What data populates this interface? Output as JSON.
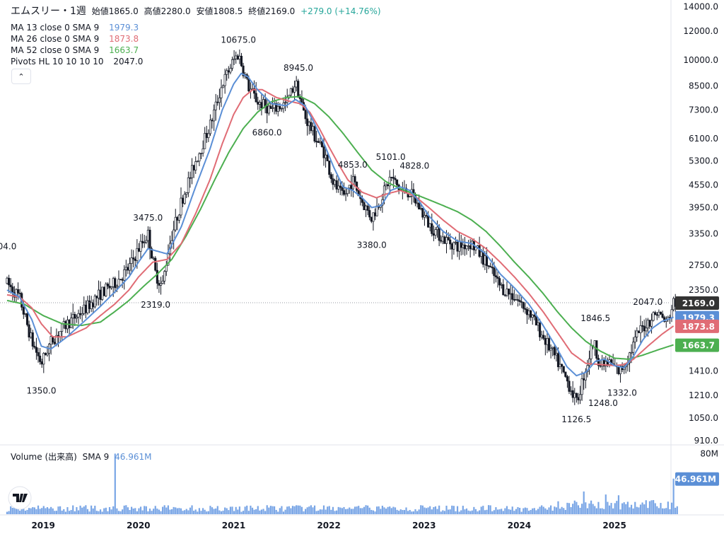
{
  "header": {
    "symbol": "エムスリー・1週",
    "open_label": "始値",
    "open_value": "1865.0",
    "high_label": "高値",
    "high_value": "2280.0",
    "low_label": "安値",
    "low_value": "1808.5",
    "close_label": "終値",
    "close_value": "2169.0",
    "change": "+279.0 (+14.76%)"
  },
  "indicators": [
    {
      "label": "MA 13 close 0 SMA 9",
      "value": "1979.3",
      "color": "#5b8fd6"
    },
    {
      "label": "MA 26 close 0 SMA 9",
      "value": "1873.8",
      "color": "#e06c75"
    },
    {
      "label": "MA 52 close 0 SMA 9",
      "value": "1663.7",
      "color": "#4caf50"
    },
    {
      "label": "Pivots HL 10 10 10 10",
      "value": "2047.0",
      "color": "#131722"
    }
  ],
  "volume_label": {
    "label": "Volume (出来高)",
    "sma": "SMA 9",
    "value": "46.961M",
    "color": "#5b8fd6"
  },
  "colors": {
    "candle": "#131722",
    "ma13": "#5b8fd6",
    "ma26": "#e06c75",
    "ma52": "#4caf50",
    "volume": "#7aa6e6",
    "axis_text": "#131722",
    "grid_border": "#e0e3eb",
    "last_price_bg": "#333333",
    "ma13_bg": "#5b8fd6",
    "ma26_bg": "#e06c75",
    "ma52_bg": "#4caf50",
    "volume_bg": "#5b8fd6"
  },
  "chart_data": {
    "type": "candlestick",
    "scale": "log",
    "y_ticks": [
      "14000.0",
      "12000.0",
      "10000.0",
      "8500.0",
      "7300.0",
      "6100.0",
      "5300.0",
      "4550.0",
      "3950.0",
      "3350.0",
      "2750.0",
      "2350.0",
      "1410.0",
      "1210.0",
      "1050.0",
      "910.0"
    ],
    "y_tick_values": [
      14000,
      12000,
      10000,
      8500,
      7300,
      6100,
      5300,
      4550,
      3950,
      3350,
      2750,
      2350,
      1410,
      1210,
      1050,
      910
    ],
    "ylim": [
      890,
      14600
    ],
    "x_ticks": [
      "2019",
      "2020",
      "2021",
      "2022",
      "2023",
      "2024",
      "2025"
    ],
    "x_tick_years": [
      2019,
      2020,
      2021,
      2022,
      2023,
      2024,
      2025
    ],
    "xlim": [
      2018.62,
      2025.66
    ],
    "price_path": [
      [
        2018.62,
        2450
      ],
      [
        2018.75,
        2250
      ],
      [
        2018.88,
        1700
      ],
      [
        2018.98,
        1480
      ],
      [
        2019.08,
        1700
      ],
      [
        2019.25,
        1900
      ],
      [
        2019.45,
        2100
      ],
      [
        2019.6,
        2300
      ],
      [
        2019.75,
        2450
      ],
      [
        2019.9,
        2700
      ],
      [
        2020.0,
        3050
      ],
      [
        2020.1,
        3350
      ],
      [
        2020.18,
        2600
      ],
      [
        2020.25,
        2400
      ],
      [
        2020.32,
        3100
      ],
      [
        2020.45,
        4100
      ],
      [
        2020.6,
        5300
      ],
      [
        2020.75,
        6600
      ],
      [
        2020.88,
        8600
      ],
      [
        2021.0,
        10000
      ],
      [
        2021.05,
        10400
      ],
      [
        2021.15,
        8500
      ],
      [
        2021.25,
        7700
      ],
      [
        2021.4,
        7300
      ],
      [
        2021.55,
        7600
      ],
      [
        2021.65,
        8700
      ],
      [
        2021.75,
        7000
      ],
      [
        2021.85,
        6200
      ],
      [
        2021.95,
        5600
      ],
      [
        2022.05,
        4600
      ],
      [
        2022.15,
        4200
      ],
      [
        2022.25,
        4700
      ],
      [
        2022.35,
        4100
      ],
      [
        2022.45,
        3700
      ],
      [
        2022.55,
        4200
      ],
      [
        2022.65,
        4800
      ],
      [
        2022.75,
        4400
      ],
      [
        2022.85,
        4350
      ],
      [
        2022.95,
        3950
      ],
      [
        2023.05,
        3550
      ],
      [
        2023.2,
        3250
      ],
      [
        2023.35,
        3100
      ],
      [
        2023.5,
        3150
      ],
      [
        2023.65,
        2800
      ],
      [
        2023.8,
        2400
      ],
      [
        2023.95,
        2250
      ],
      [
        2024.1,
        2050
      ],
      [
        2024.25,
        1750
      ],
      [
        2024.4,
        1500
      ],
      [
        2024.55,
        1250
      ],
      [
        2024.6,
        1150
      ],
      [
        2024.68,
        1380
      ],
      [
        2024.78,
        1700
      ],
      [
        2024.85,
        1460
      ],
      [
        2024.95,
        1480
      ],
      [
        2025.05,
        1400
      ],
      [
        2025.15,
        1550
      ],
      [
        2025.25,
        1800
      ],
      [
        2025.35,
        1920
      ],
      [
        2025.45,
        2050
      ],
      [
        2025.55,
        1900
      ],
      [
        2025.62,
        2169
      ]
    ],
    "ma13": [
      [
        2018.62,
        2350
      ],
      [
        2018.75,
        2250
      ],
      [
        2018.88,
        1950
      ],
      [
        2018.98,
        1650
      ],
      [
        2019.08,
        1620
      ],
      [
        2019.25,
        1750
      ],
      [
        2019.45,
        1950
      ],
      [
        2019.6,
        2120
      ],
      [
        2019.75,
        2320
      ],
      [
        2019.9,
        2550
      ],
      [
        2020.0,
        2800
      ],
      [
        2020.1,
        3050
      ],
      [
        2020.2,
        3000
      ],
      [
        2020.3,
        2950
      ],
      [
        2020.45,
        3500
      ],
      [
        2020.6,
        4500
      ],
      [
        2020.75,
        5700
      ],
      [
        2020.88,
        7300
      ],
      [
        2021.0,
        8600
      ],
      [
        2021.08,
        9200
      ],
      [
        2021.15,
        9000
      ],
      [
        2021.25,
        8300
      ],
      [
        2021.4,
        7600
      ],
      [
        2021.55,
        7500
      ],
      [
        2021.65,
        7800
      ],
      [
        2021.75,
        7500
      ],
      [
        2021.85,
        6700
      ],
      [
        2021.95,
        5900
      ],
      [
        2022.05,
        5100
      ],
      [
        2022.15,
        4500
      ],
      [
        2022.25,
        4400
      ],
      [
        2022.35,
        4200
      ],
      [
        2022.45,
        3950
      ],
      [
        2022.55,
        4000
      ],
      [
        2022.65,
        4400
      ],
      [
        2022.75,
        4500
      ],
      [
        2022.85,
        4400
      ],
      [
        2022.95,
        4100
      ],
      [
        2023.05,
        3750
      ],
      [
        2023.2,
        3400
      ],
      [
        2023.35,
        3200
      ],
      [
        2023.5,
        3150
      ],
      [
        2023.65,
        2950
      ],
      [
        2023.8,
        2600
      ],
      [
        2023.95,
        2380
      ],
      [
        2024.1,
        2150
      ],
      [
        2024.25,
        1880
      ],
      [
        2024.4,
        1620
      ],
      [
        2024.5,
        1450
      ],
      [
        2024.6,
        1370
      ],
      [
        2024.7,
        1400
      ],
      [
        2024.8,
        1500
      ],
      [
        2024.9,
        1520
      ],
      [
        2025.0,
        1460
      ],
      [
        2025.1,
        1440
      ],
      [
        2025.2,
        1550
      ],
      [
        2025.3,
        1720
      ],
      [
        2025.4,
        1850
      ],
      [
        2025.5,
        1930
      ],
      [
        2025.62,
        1979.3
      ]
    ],
    "ma26": [
      [
        2018.62,
        2280
      ],
      [
        2018.75,
        2250
      ],
      [
        2018.88,
        2100
      ],
      [
        2018.98,
        1900
      ],
      [
        2019.1,
        1750
      ],
      [
        2019.25,
        1750
      ],
      [
        2019.45,
        1850
      ],
      [
        2019.6,
        2000
      ],
      [
        2019.75,
        2150
      ],
      [
        2019.9,
        2350
      ],
      [
        2020.0,
        2550
      ],
      [
        2020.15,
        2800
      ],
      [
        2020.3,
        2850
      ],
      [
        2020.45,
        3150
      ],
      [
        2020.6,
        3800
      ],
      [
        2020.75,
        4700
      ],
      [
        2020.88,
        5900
      ],
      [
        2021.0,
        7100
      ],
      [
        2021.1,
        7900
      ],
      [
        2021.2,
        8300
      ],
      [
        2021.3,
        8300
      ],
      [
        2021.45,
        7900
      ],
      [
        2021.6,
        7700
      ],
      [
        2021.7,
        7600
      ],
      [
        2021.8,
        7200
      ],
      [
        2021.9,
        6500
      ],
      [
        2022.0,
        5800
      ],
      [
        2022.1,
        5200
      ],
      [
        2022.2,
        4700
      ],
      [
        2022.35,
        4350
      ],
      [
        2022.5,
        4200
      ],
      [
        2022.6,
        4300
      ],
      [
        2022.75,
        4400
      ],
      [
        2022.9,
        4250
      ],
      [
        2023.05,
        3950
      ],
      [
        2023.2,
        3650
      ],
      [
        2023.35,
        3400
      ],
      [
        2023.5,
        3250
      ],
      [
        2023.65,
        3050
      ],
      [
        2023.8,
        2800
      ],
      [
        2023.95,
        2550
      ],
      [
        2024.1,
        2300
      ],
      [
        2024.25,
        2050
      ],
      [
        2024.4,
        1800
      ],
      [
        2024.55,
        1580
      ],
      [
        2024.7,
        1480
      ],
      [
        2024.85,
        1470
      ],
      [
        2025.0,
        1460
      ],
      [
        2025.1,
        1470
      ],
      [
        2025.2,
        1520
      ],
      [
        2025.35,
        1650
      ],
      [
        2025.5,
        1780
      ],
      [
        2025.62,
        1873.8
      ]
    ],
    "ma52": [
      [
        2018.62,
        2200
      ],
      [
        2018.8,
        2150
      ],
      [
        2019.0,
        2000
      ],
      [
        2019.2,
        1900
      ],
      [
        2019.4,
        1880
      ],
      [
        2019.6,
        1920
      ],
      [
        2019.75,
        2050
      ],
      [
        2019.9,
        2200
      ],
      [
        2020.05,
        2400
      ],
      [
        2020.2,
        2600
      ],
      [
        2020.35,
        2850
      ],
      [
        2020.5,
        3300
      ],
      [
        2020.65,
        3900
      ],
      [
        2020.8,
        4700
      ],
      [
        2020.95,
        5600
      ],
      [
        2021.1,
        6500
      ],
      [
        2021.25,
        7200
      ],
      [
        2021.4,
        7700
      ],
      [
        2021.55,
        7900
      ],
      [
        2021.7,
        7950
      ],
      [
        2021.85,
        7600
      ],
      [
        2022.0,
        7000
      ],
      [
        2022.15,
        6300
      ],
      [
        2022.3,
        5600
      ],
      [
        2022.45,
        5000
      ],
      [
        2022.6,
        4650
      ],
      [
        2022.75,
        4450
      ],
      [
        2022.9,
        4300
      ],
      [
        2023.05,
        4150
      ],
      [
        2023.2,
        4000
      ],
      [
        2023.35,
        3850
      ],
      [
        2023.5,
        3650
      ],
      [
        2023.65,
        3400
      ],
      [
        2023.8,
        3100
      ],
      [
        2023.95,
        2800
      ],
      [
        2024.1,
        2550
      ],
      [
        2024.25,
        2300
      ],
      [
        2024.4,
        2050
      ],
      [
        2024.55,
        1850
      ],
      [
        2024.7,
        1700
      ],
      [
        2024.85,
        1600
      ],
      [
        2025.0,
        1530
      ],
      [
        2025.15,
        1520
      ],
      [
        2025.3,
        1560
      ],
      [
        2025.45,
        1610
      ],
      [
        2025.62,
        1663.7
      ]
    ],
    "pivots": [
      {
        "label": "10675.0",
        "x": 2021.05,
        "y": 10675,
        "pos": "above"
      },
      {
        "label": "8945.0",
        "x": 2021.68,
        "y": 8945,
        "pos": "above"
      },
      {
        "label": "3475.0",
        "x": 2020.1,
        "y": 3475,
        "pos": "above"
      },
      {
        "label": "04.0",
        "x": 2018.62,
        "y": 2904,
        "pos": "above"
      },
      {
        "label": "6860.0",
        "x": 2021.35,
        "y": 6860,
        "pos": "below"
      },
      {
        "label": "5101.0",
        "x": 2022.65,
        "y": 5101,
        "pos": "above"
      },
      {
        "label": "4853.0",
        "x": 2022.25,
        "y": 4853,
        "pos": "above"
      },
      {
        "label": "4828.0",
        "x": 2022.9,
        "y": 4828,
        "pos": "above"
      },
      {
        "label": "3380.0",
        "x": 2022.45,
        "y": 3380,
        "pos": "below"
      },
      {
        "label": "2319.0",
        "x": 2020.18,
        "y": 2319,
        "pos": "below"
      },
      {
        "label": "1350.0",
        "x": 2018.98,
        "y": 1350,
        "pos": "below"
      },
      {
        "label": "1846.5",
        "x": 2024.8,
        "y": 1846.5,
        "pos": "above"
      },
      {
        "label": "2047.0",
        "x": 2025.35,
        "y": 2047,
        "pos": "above"
      },
      {
        "label": "1126.5",
        "x": 2024.6,
        "y": 1126.5,
        "pos": "below"
      },
      {
        "label": "1248.0",
        "x": 2024.88,
        "y": 1248,
        "pos": "below"
      },
      {
        "label": "1332.0",
        "x": 2025.08,
        "y": 1332,
        "pos": "below"
      }
    ],
    "price_labels": [
      {
        "label": "2169.0",
        "value": 2169.0,
        "type": "last"
      },
      {
        "label": "1979.3",
        "value": 1979.3,
        "type": "ma13"
      },
      {
        "label": "1873.8",
        "value": 1873.8,
        "type": "ma26"
      },
      {
        "label": "1663.7",
        "value": 1663.7,
        "type": "ma52"
      }
    ],
    "volume": {
      "y_ticks": [
        "80M"
      ],
      "last_label": "46.961M",
      "ylim_millions": [
        0,
        85
      ],
      "spikes": [
        {
          "x": 2019.75,
          "value": 80
        },
        {
          "x": 2024.68,
          "value": 30
        },
        {
          "x": 2024.9,
          "value": 26
        },
        {
          "x": 2025.05,
          "value": 25
        },
        {
          "x": 2025.62,
          "value": 46.961
        }
      ],
      "base_level_millions": 8
    }
  }
}
